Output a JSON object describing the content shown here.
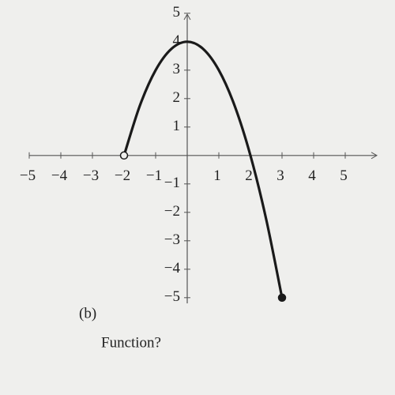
{
  "chart_data": {
    "type": "line",
    "x": [
      -2,
      -1.5,
      -1,
      -0.5,
      0,
      0.5,
      1,
      1.5,
      2,
      2.5,
      3
    ],
    "series": [
      {
        "color": "#1a1a1a",
        "values": [
          0,
          1.75,
          3,
          3.75,
          4,
          3.75,
          3,
          1.75,
          0,
          -2.25,
          -5
        ]
      }
    ],
    "start_marker": "open",
    "end_marker": "filled",
    "xlim": [
      -5,
      6
    ],
    "ylim": [
      -5.2,
      5.3
    ],
    "xticks": [
      {
        "value": -5,
        "label": "−5"
      },
      {
        "value": -4,
        "label": "−4"
      },
      {
        "value": -3,
        "label": "−3"
      },
      {
        "value": -2,
        "label": "−2"
      },
      {
        "value": -1,
        "label": "−1"
      },
      1,
      2,
      3,
      4,
      5
    ],
    "yticks": [
      {
        "value": -5,
        "label": "−5"
      },
      {
        "value": -4,
        "label": "−4"
      },
      {
        "value": -3,
        "label": "−3"
      },
      {
        "value": -2,
        "label": "−2"
      },
      {
        "value": -1,
        "label": "−1"
      },
      1,
      2,
      3,
      4,
      5
    ],
    "annotations": [
      "(b)",
      "Function?"
    ]
  }
}
